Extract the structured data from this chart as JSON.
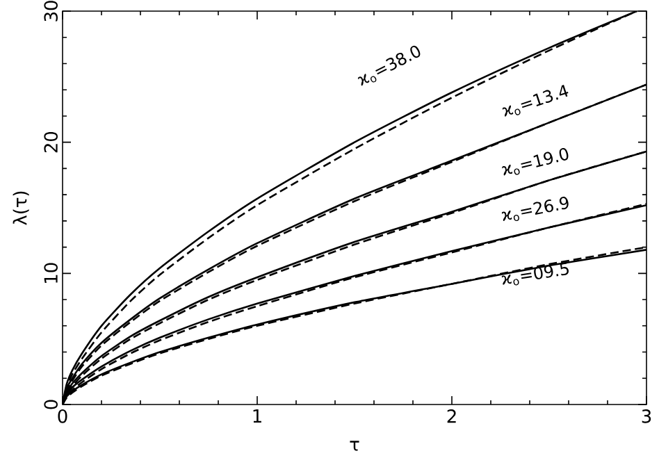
{
  "chart_data": {
    "type": "line",
    "xlabel": "τ",
    "ylabel": "λ(τ)",
    "xlim": [
      0,
      3
    ],
    "ylim": [
      0,
      30
    ],
    "xticks": [
      0,
      1,
      2,
      3
    ],
    "yticks": [
      0,
      10,
      20,
      30
    ],
    "grid": false,
    "marker": "none",
    "x": [
      0,
      0.02,
      0.05,
      0.1,
      0.2,
      0.35,
      0.5,
      0.75,
      1,
      1.5,
      2,
      2.5,
      3
    ],
    "series": [
      {
        "color": "#000000",
        "line_style": "solid",
        "x": [
          0,
          0.02,
          0.05,
          0.1,
          0.2,
          0.35,
          0.5,
          0.75,
          1,
          1.5,
          2,
          2.5,
          2.95
        ],
        "values": [
          0,
          1.5,
          2.6,
          3.9,
          6.0,
          8.4,
          10.4,
          13.2,
          15.7,
          20.0,
          23.8,
          27.2,
          30.0
        ]
      },
      {
        "color": "#000000",
        "line_style": "dashed",
        "x": [
          0,
          0.02,
          0.05,
          0.1,
          0.2,
          0.35,
          0.5,
          0.75,
          1,
          1.5,
          2,
          2.5,
          2.95
        ],
        "values": [
          0,
          1.3,
          2.3,
          3.5,
          5.5,
          7.9,
          9.9,
          12.7,
          15.2,
          19.5,
          23.4,
          27.0,
          30.0
        ]
      },
      {
        "color": "#000000",
        "line_style": "solid",
        "values": [
          0,
          1.2,
          2.0,
          3.1,
          4.7,
          6.5,
          8.1,
          10.3,
          12.3,
          15.7,
          18.6,
          21.5,
          24.4
        ]
      },
      {
        "color": "#000000",
        "line_style": "dashed",
        "values": [
          0,
          1.0,
          1.8,
          2.9,
          4.5,
          6.3,
          7.9,
          10.1,
          12.1,
          15.5,
          18.5,
          21.5,
          24.4
        ]
      },
      {
        "color": "#000000",
        "line_style": "solid",
        "values": [
          0,
          0.9,
          1.6,
          2.4,
          3.7,
          5.2,
          6.4,
          8.2,
          9.7,
          12.4,
          14.7,
          17.1,
          19.3
        ]
      },
      {
        "color": "#000000",
        "line_style": "dashed",
        "values": [
          0,
          0.8,
          1.4,
          2.2,
          3.5,
          5.0,
          6.2,
          8.0,
          9.5,
          12.2,
          14.6,
          17.1,
          19.3
        ]
      },
      {
        "color": "#000000",
        "line_style": "solid",
        "values": [
          0,
          0.7,
          1.3,
          1.9,
          2.9,
          4.1,
          5.1,
          6.5,
          7.7,
          9.8,
          11.7,
          13.5,
          15.2
        ]
      },
      {
        "color": "#000000",
        "line_style": "dashed",
        "values": [
          0,
          0.6,
          1.1,
          1.7,
          2.7,
          3.9,
          4.9,
          6.3,
          7.5,
          9.7,
          11.6,
          13.5,
          15.3
        ]
      },
      {
        "color": "#000000",
        "line_style": "solid",
        "values": [
          0,
          0.6,
          1.0,
          1.5,
          2.3,
          3.2,
          4.0,
          5.1,
          6.1,
          7.8,
          9.2,
          10.6,
          11.8
        ]
      },
      {
        "color": "#000000",
        "line_style": "dashed",
        "values": [
          0,
          0.5,
          0.9,
          1.4,
          2.2,
          3.1,
          3.9,
          5.0,
          6.0,
          7.7,
          9.2,
          10.7,
          12.0
        ]
      }
    ],
    "annotations": [
      "ϰ$_{o}$=38.0",
      "ϰ$_{o}$=13.4",
      "ϰ$_{o}$=19.0",
      "ϰ$_{o}$=26.9",
      "ϰ$_{o}$=09.5"
    ]
  }
}
